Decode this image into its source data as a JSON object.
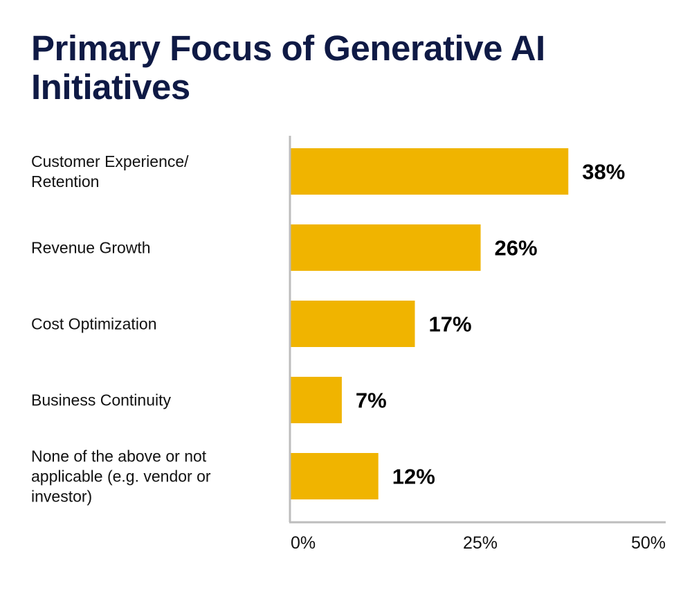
{
  "chart_data": {
    "type": "bar",
    "orientation": "horizontal",
    "title": "Primary Focus of Generative AI Initiatives",
    "categories": [
      [
        "Customer Experience/",
        "Retention"
      ],
      [
        "Revenue Growth"
      ],
      [
        "Cost Optimization"
      ],
      [
        "Business Continuity"
      ],
      [
        "None of the above or not",
        "applicable (e.g. vendor or",
        "investor)"
      ]
    ],
    "values": [
      38,
      26,
      17,
      7,
      12
    ],
    "data_labels": [
      "38%",
      "26%",
      "17%",
      "7%",
      "12%"
    ],
    "xlim": [
      0,
      50
    ],
    "xticks": [
      "0%",
      "25%",
      "50%"
    ],
    "xlabel": "",
    "ylabel": "",
    "grid": false,
    "colors": {
      "bar": "#f0b400",
      "title": "#0f1a45",
      "axis": "#bdbdbd"
    }
  }
}
